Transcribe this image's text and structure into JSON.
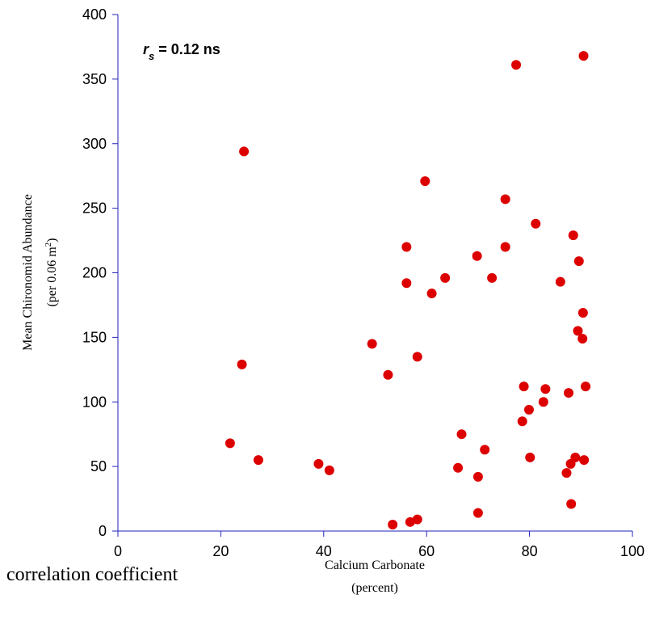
{
  "chart_data": {
    "type": "scatter",
    "xlabel": "Calcium Carbonate",
    "xlabel_unit": "(percent)",
    "ylabel": "Mean Chironomid Abundance",
    "ylabel_unit_prefix": "(per 0.06 m",
    "ylabel_unit_sup": "2",
    "ylabel_unit_suffix": ")",
    "annotation": {
      "symbol": "r",
      "subscript": "s",
      "text": " = 0.12 ns"
    },
    "xlim": [
      0,
      100
    ],
    "ylim": [
      0,
      400
    ],
    "xticks": [
      0,
      20,
      40,
      60,
      80,
      100
    ],
    "yticks": [
      0,
      50,
      100,
      150,
      200,
      250,
      300,
      350,
      400
    ],
    "grid": false,
    "colors": {
      "point": "#dd0000",
      "axis": "#2222bb"
    },
    "points": [
      [
        21.8,
        68
      ],
      [
        24.1,
        129
      ],
      [
        24.5,
        294
      ],
      [
        27.3,
        55
      ],
      [
        39.0,
        52
      ],
      [
        41.1,
        47
      ],
      [
        49.4,
        145
      ],
      [
        52.5,
        121
      ],
      [
        53.4,
        5
      ],
      [
        56.1,
        220
      ],
      [
        56.1,
        192
      ],
      [
        56.8,
        7
      ],
      [
        58.2,
        135
      ],
      [
        58.2,
        9
      ],
      [
        59.7,
        271
      ],
      [
        61.0,
        184
      ],
      [
        63.6,
        196
      ],
      [
        66.1,
        49
      ],
      [
        66.8,
        75
      ],
      [
        69.8,
        213
      ],
      [
        70.0,
        42
      ],
      [
        70.0,
        14
      ],
      [
        71.3,
        63
      ],
      [
        72.7,
        196
      ],
      [
        75.3,
        220
      ],
      [
        75.3,
        257
      ],
      [
        77.4,
        361
      ],
      [
        78.6,
        85
      ],
      [
        78.9,
        112
      ],
      [
        79.9,
        94
      ],
      [
        80.1,
        57
      ],
      [
        81.2,
        238
      ],
      [
        82.7,
        100
      ],
      [
        83.1,
        110
      ],
      [
        86.0,
        193
      ],
      [
        87.2,
        45
      ],
      [
        87.6,
        107
      ],
      [
        88.0,
        52
      ],
      [
        88.1,
        21
      ],
      [
        88.5,
        229
      ],
      [
        88.9,
        57
      ],
      [
        89.4,
        155
      ],
      [
        89.6,
        209
      ],
      [
        90.3,
        149
      ],
      [
        90.4,
        169
      ],
      [
        90.5,
        368
      ],
      [
        90.6,
        55
      ],
      [
        90.9,
        112
      ]
    ]
  },
  "footer": {
    "caption": "correlation coefficient"
  }
}
